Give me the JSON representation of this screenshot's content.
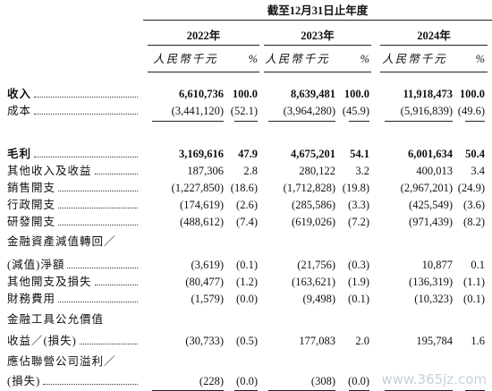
{
  "header": {
    "period": "截至12月31日止年度",
    "years": [
      "2022年",
      "2023年",
      "2024年"
    ],
    "units": [
      "人民幣千元",
      "%",
      "人民幣千元",
      "%",
      "人民幣千元",
      "%"
    ]
  },
  "table": {
    "rows": [
      {
        "label": "收入",
        "values": [
          "6,610,736",
          "100.0",
          "8,639,481",
          "100.0",
          "11,918,473",
          "100.0"
        ]
      },
      {
        "label": "成本",
        "values": [
          "(3,441,120)",
          "(52.1)",
          "(3,964,280)",
          "(45.9)",
          "(5,916,839)",
          "(49.6)"
        ]
      },
      {
        "label": "毛利",
        "values": [
          "3,169,616",
          "47.9",
          "4,675,201",
          "54.1",
          "6,001,634",
          "50.4"
        ]
      },
      {
        "label": "其他收入及收益",
        "values": [
          "187,306",
          "2.8",
          "280,122",
          "3.2",
          "400,013",
          "3.4"
        ]
      },
      {
        "label": "銷售開支",
        "values": [
          "(1,227,850)",
          "(18.6)",
          "(1,712,828)",
          "(19.8)",
          "(2,967,201)",
          "(24.9)"
        ]
      },
      {
        "label": "行政開支",
        "values": [
          "(174,619)",
          "(2.6)",
          "(285,586)",
          "(3.3)",
          "(425,549)",
          "(3.6)"
        ]
      },
      {
        "label": "研發開支",
        "values": [
          "(488,612)",
          "(7.4)",
          "(619,026)",
          "(7.2)",
          "(971,439)",
          "(8.2)"
        ]
      },
      {
        "label": "金融資產減值轉回／",
        "values": []
      },
      {
        "label": "(減值)淨額",
        "values": [
          "(3,619)",
          "(0.1)",
          "(21,756)",
          "(0.3)",
          "10,877",
          "0.1"
        ]
      },
      {
        "label": "其他開支及損失",
        "values": [
          "(80,477)",
          "(1.2)",
          "(163,621)",
          "(1.9)",
          "(136,319)",
          "(1.1)"
        ]
      },
      {
        "label": "財務費用",
        "values": [
          "(1,579)",
          "(0.0)",
          "(9,498)",
          "(0.1)",
          "(10,323)",
          "(0.1)"
        ]
      },
      {
        "label": "金融工具公允價值",
        "values": []
      },
      {
        "label": "收益／(損失)",
        "values": [
          "(30,733)",
          "(0.5)",
          "177,083",
          "2.0",
          "195,784",
          "1.6"
        ]
      },
      {
        "label": "應佔聯營公司溢利／",
        "values": []
      },
      {
        "label": "(損失)",
        "values": [
          "(228)",
          "(0.0)",
          "(308)",
          "(0.0)"
        ]
      }
    ]
  },
  "watermark": "www.365jz.com"
}
